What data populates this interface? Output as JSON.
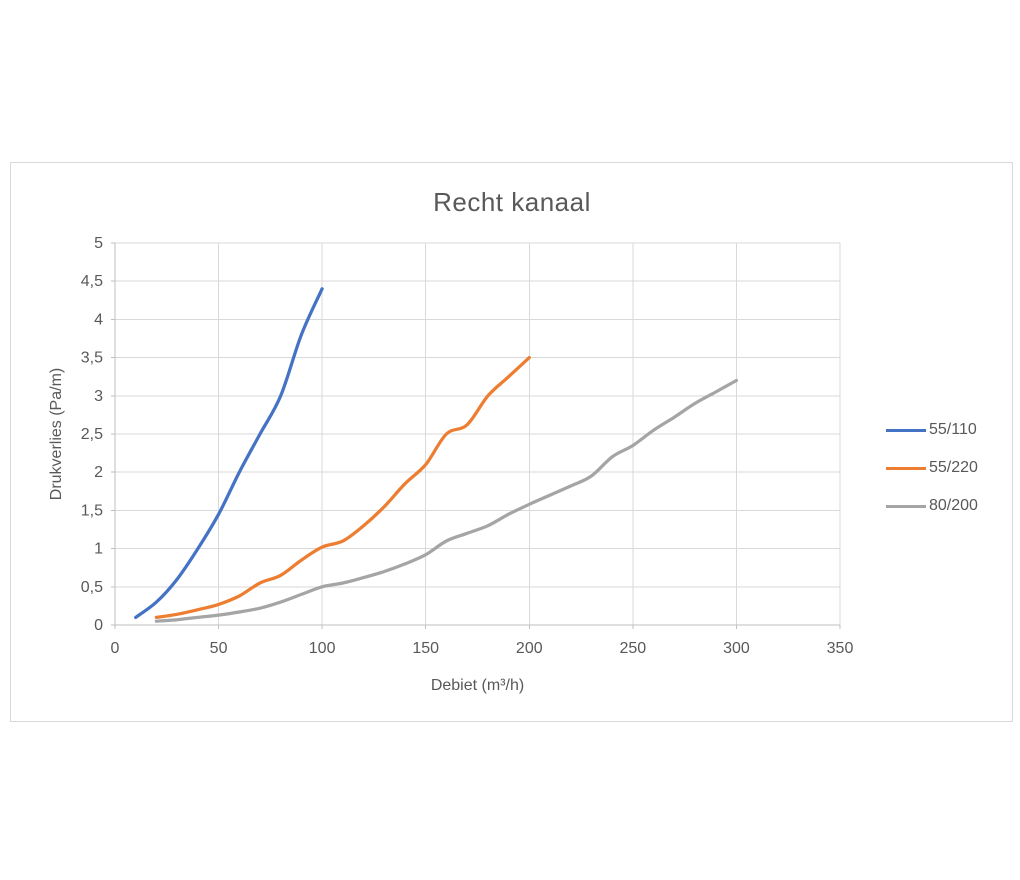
{
  "chart_data": {
    "type": "line",
    "title": "Recht kanaal",
    "xlabel": "Debiet (m³/h)",
    "ylabel": "Drukverlies (Pa/m)",
    "xlim": [
      0,
      350
    ],
    "ylim": [
      0,
      5
    ],
    "x_ticks": [
      0,
      50,
      100,
      150,
      200,
      250,
      300,
      350
    ],
    "x_tick_labels": [
      "0",
      "50",
      "100",
      "150",
      "200",
      "250",
      "300",
      "350"
    ],
    "y_ticks": [
      0,
      0.5,
      1,
      1.5,
      2,
      2.5,
      3,
      3.5,
      4,
      4.5,
      5
    ],
    "y_tick_labels": [
      "0",
      "0,5",
      "1",
      "1,5",
      "2",
      "2,5",
      "3",
      "3,5",
      "4",
      "4,5",
      "5"
    ],
    "grid": true,
    "legend_position": "right",
    "colors": {
      "grid": "#D9D9D9",
      "axis": "#BFBFBF",
      "text": "#595959",
      "frame": "#D9D9D9",
      "background": "#FFFFFF"
    },
    "series": [
      {
        "name": "55/110",
        "color": "#4472C4",
        "x": [
          10,
          20,
          30,
          40,
          50,
          60,
          70,
          80,
          90,
          100
        ],
        "y": [
          0.1,
          0.3,
          0.6,
          1.0,
          1.45,
          2.0,
          2.5,
          3.0,
          3.8,
          4.4
        ]
      },
      {
        "name": "55/220",
        "color": "#ED7D31",
        "x": [
          20,
          30,
          40,
          50,
          60,
          70,
          80,
          90,
          100,
          110,
          120,
          130,
          140,
          150,
          160,
          170,
          180,
          190,
          200
        ],
        "y": [
          0.1,
          0.14,
          0.2,
          0.27,
          0.38,
          0.55,
          0.65,
          0.85,
          1.02,
          1.1,
          1.3,
          1.55,
          1.85,
          2.1,
          2.5,
          2.62,
          3.0,
          3.25,
          3.5
        ]
      },
      {
        "name": "80/200",
        "color": "#A5A5A5",
        "x": [
          20,
          30,
          40,
          50,
          60,
          70,
          80,
          90,
          100,
          110,
          120,
          130,
          140,
          150,
          160,
          170,
          180,
          190,
          200,
          210,
          220,
          230,
          240,
          250,
          260,
          270,
          280,
          290,
          300
        ],
        "y": [
          0.05,
          0.07,
          0.1,
          0.13,
          0.17,
          0.22,
          0.3,
          0.4,
          0.5,
          0.55,
          0.62,
          0.7,
          0.8,
          0.92,
          1.1,
          1.2,
          1.3,
          1.45,
          1.58,
          1.7,
          1.82,
          1.95,
          2.2,
          2.35,
          2.55,
          2.72,
          2.9,
          3.05,
          3.2
        ]
      }
    ]
  }
}
